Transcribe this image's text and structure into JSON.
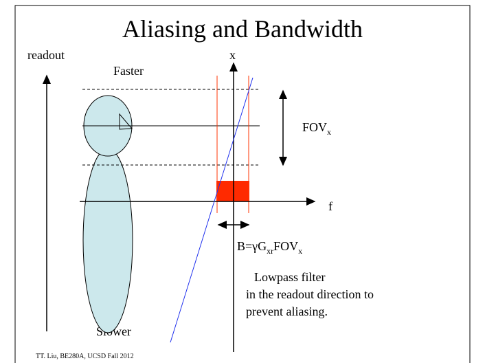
{
  "title": "Aliasing and Bandwidth",
  "labels": {
    "readout": "readout",
    "faster": "Faster",
    "slower": "Slower",
    "x_axis": "x",
    "f_axis": "f"
  },
  "fov": {
    "main": "FOV",
    "sub": "x"
  },
  "bandwidth": {
    "parts": [
      "B=γG",
      "xr",
      "FOV",
      "x"
    ]
  },
  "note": {
    "lines": [
      "Lowpass filter",
      "in the readout direction to",
      "prevent aliasing."
    ]
  },
  "footer": "TT. Liu, BE280A, UCSD Fall 2012"
}
